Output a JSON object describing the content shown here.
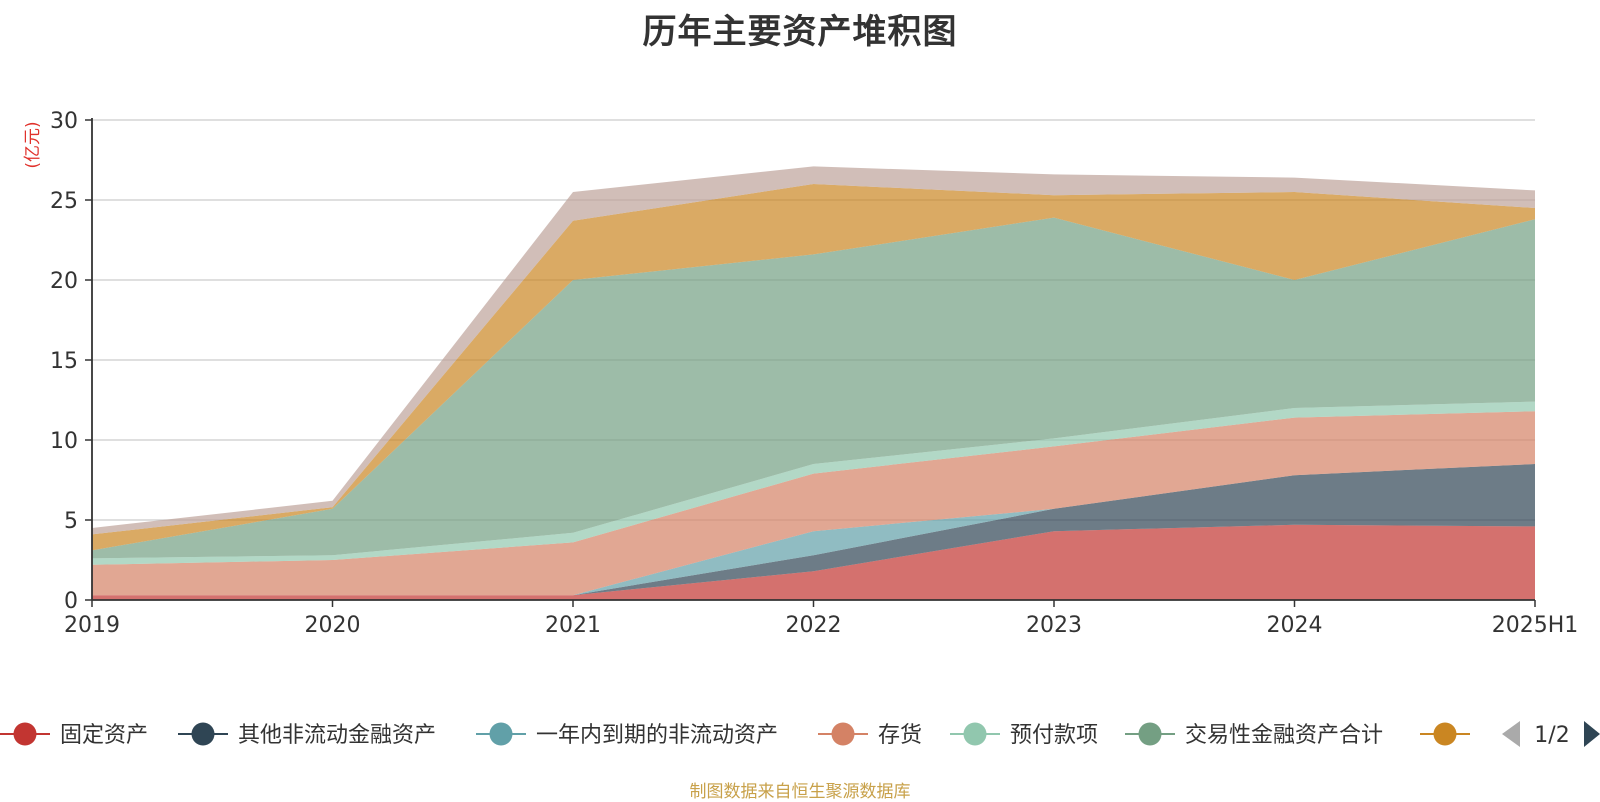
{
  "source_note": "制图数据来自恒生聚源数据库",
  "legend_pager": {
    "text": "1/2",
    "prev_color": "#aaaaaa",
    "next_color": "#2f4554"
  },
  "chart_data": {
    "type": "area",
    "stacked": true,
    "title": "历年主要资产堆积图",
    "unit_label": "(亿元)",
    "unit_label_color": "#e0312b",
    "xlabel": "",
    "ylabel": "",
    "categories": [
      "2019",
      "2020",
      "2021",
      "2022",
      "2023",
      "2024",
      "2025H1"
    ],
    "ylim": [
      0,
      30
    ],
    "yticks": [
      0,
      5,
      10,
      15,
      20,
      25,
      30
    ],
    "grid": true,
    "legend_position": "bottom",
    "series": [
      {
        "name": "固定资产",
        "color": "#c23531",
        "values": [
          0.3,
          0.3,
          0.3,
          1.8,
          4.3,
          4.7,
          4.6
        ]
      },
      {
        "name": "其他非流动金融资产",
        "color": "#2f4554",
        "values": [
          0,
          0,
          0,
          1.0,
          1.4,
          3.1,
          3.9
        ]
      },
      {
        "name": "一年内到期的非流动资产",
        "color": "#61a0a8",
        "values": [
          0,
          0,
          0,
          1.5,
          0,
          0,
          0
        ]
      },
      {
        "name": "存货",
        "color": "#d48265",
        "values": [
          1.9,
          2.2,
          3.3,
          3.6,
          3.9,
          3.6,
          3.3
        ]
      },
      {
        "name": "预付款项",
        "color": "#91c7ae",
        "values": [
          0.4,
          0.3,
          0.6,
          0.6,
          0.5,
          0.6,
          0.6
        ]
      },
      {
        "name": "交易性金融资产合计",
        "color": "#749f83",
        "values": [
          0.5,
          2.9,
          15.8,
          13.1,
          13.8,
          8.0,
          11.4
        ]
      },
      {
        "name": "",
        "color": "#ca8622",
        "values": [
          1.0,
          0.1,
          3.7,
          4.4,
          1.4,
          5.5,
          0.7
        ]
      },
      {
        "name": "",
        "color": "#bda29a",
        "values": [
          0.4,
          0.4,
          1.8,
          1.1,
          1.3,
          0.9,
          1.1
        ]
      }
    ]
  }
}
